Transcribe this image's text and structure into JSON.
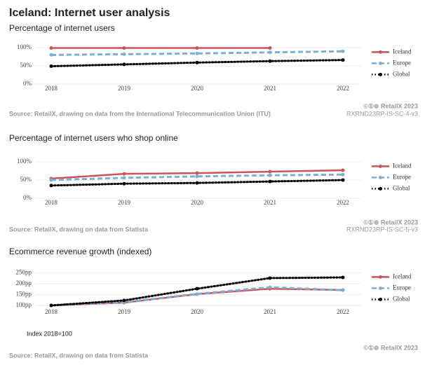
{
  "title": "Iceland: Internet user analysis",
  "chart_data": [
    {
      "type": "line",
      "subtitle": "Percentage of internet users",
      "x": [
        "2018",
        "2019",
        "2020",
        "2021",
        "2022"
      ],
      "series": [
        {
          "name": "Iceland",
          "color": "#d1515a",
          "dash": "solid",
          "values": [
            99,
            99,
            99,
            99,
            null
          ]
        },
        {
          "name": "Europe",
          "color": "#7bafd4",
          "dash": "dashed",
          "values": [
            80,
            82,
            84,
            87,
            90
          ]
        },
        {
          "name": "Global",
          "color": "#000000",
          "dash": "dotted",
          "values": [
            49,
            54,
            59,
            63,
            66
          ]
        }
      ],
      "ylim": [
        0,
        105
      ],
      "yticks": [
        {
          "value": 0,
          "label": "0%"
        },
        {
          "value": 50,
          "label": "50%"
        },
        {
          "value": 100,
          "label": "100%"
        }
      ],
      "grid": true,
      "legend": "right",
      "source": "Source: RetailX, drawing on data from the International Telecommunication Union (ITU)",
      "credit": "©①⊜ RetailX 2023",
      "code": "RXRND23RP-IS-SC-4-v3"
    },
    {
      "type": "line",
      "subtitle": "Percentage of internet users who shop online",
      "x": [
        "2018",
        "2019",
        "2020",
        "2021",
        "2022"
      ],
      "series": [
        {
          "name": "Iceland",
          "color": "#d1515a",
          "dash": "solid",
          "values": [
            54,
            67,
            69,
            73,
            77
          ]
        },
        {
          "name": "Europe",
          "color": "#7bafd4",
          "dash": "dashed",
          "values": [
            50,
            56,
            60,
            63,
            65
          ]
        },
        {
          "name": "Global",
          "color": "#000000",
          "dash": "dotted",
          "values": [
            35,
            40,
            42,
            46,
            50
          ]
        }
      ],
      "ylim": [
        0,
        105
      ],
      "yticks": [
        {
          "value": 0,
          "label": "0%"
        },
        {
          "value": 50,
          "label": "50%"
        },
        {
          "value": 100,
          "label": "100%"
        }
      ],
      "grid": true,
      "legend": "right",
      "source": "Source: RetailX, drawing on data from Statista",
      "credit": "©①⊜ RetailX 2023",
      "code": "RXRND23RP-IS-SC-5-v3"
    },
    {
      "type": "line",
      "subtitle": "Ecommerce revenue growth (indexed)",
      "x": [
        "2018",
        "2019",
        "2020",
        "2021",
        "2022"
      ],
      "series": [
        {
          "name": "Iceland",
          "color": "#d1515a",
          "dash": "solid",
          "values": [
            100,
            113,
            152,
            177,
            171
          ]
        },
        {
          "name": "Europe",
          "color": "#7bafd4",
          "dash": "dashed",
          "values": [
            100,
            115,
            153,
            184,
            170
          ]
        },
        {
          "name": "Global",
          "color": "#000000",
          "dash": "dotted",
          "values": [
            100,
            123,
            177,
            226,
            229
          ]
        }
      ],
      "ylim": [
        90,
        260
      ],
      "yticks": [
        {
          "value": 100,
          "label": "100pp"
        },
        {
          "value": 150,
          "label": "150pp"
        },
        {
          "value": 200,
          "label": "200pp"
        },
        {
          "value": 250,
          "label": "250pp"
        }
      ],
      "grid": true,
      "legend": "right",
      "note": "Index 2018=100",
      "source": "Source: RetailX, drawing on data from Statista",
      "credit": "©①⊜ RetailX 2023"
    }
  ]
}
